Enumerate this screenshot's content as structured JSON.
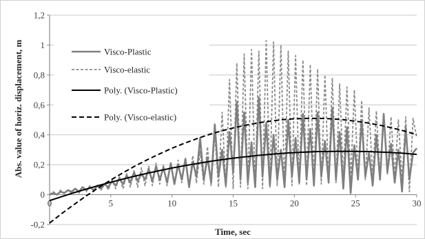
{
  "chart_data": {
    "type": "line",
    "xlabel": "Time, sec",
    "ylabel": "Abs. value of horiz. displacement, m",
    "xlim": [
      0,
      30
    ],
    "ylim": [
      -0.2,
      1.2
    ],
    "x_ticks": [
      0,
      5,
      10,
      15,
      20,
      25,
      30
    ],
    "x_tick_labels": [
      "0",
      "5",
      "10",
      "15",
      "20",
      "25",
      "30"
    ],
    "y_ticks": [
      -0.2,
      0,
      0.2,
      0.4,
      0.6,
      0.8,
      1,
      1.2
    ],
    "y_tick_labels": [
      "-0,2",
      "0",
      "0,2",
      "0,4",
      "0,6",
      "0,8",
      "1",
      "1,2"
    ],
    "grid": true,
    "legend_position": "top-left",
    "series": [
      {
        "name": "Visco-Plastic",
        "color": "#7f7f7f",
        "line_style": "solid",
        "x": [
          0,
          0.3,
          0.6,
          0.9,
          1.2,
          1.5,
          1.8,
          2.1,
          2.4,
          2.7,
          3,
          3.3,
          3.6,
          3.9,
          4.2,
          4.5,
          4.8,
          5.1,
          5.4,
          5.7,
          6,
          6.3,
          6.6,
          6.9,
          7.2,
          7.5,
          7.8,
          8.1,
          8.4,
          8.7,
          9,
          9.3,
          9.6,
          9.9,
          10.2,
          10.5,
          10.8,
          11.1,
          11.4,
          11.7,
          12,
          12.3,
          12.6,
          12.9,
          13.2,
          13.5,
          13.8,
          14.1,
          14.4,
          14.7,
          15,
          15.3,
          15.6,
          15.9,
          16.2,
          16.5,
          16.8,
          17.1,
          17.4,
          17.7,
          18,
          18.3,
          18.6,
          18.9,
          19.2,
          19.5,
          19.8,
          20.1,
          20.4,
          20.7,
          21,
          21.3,
          21.6,
          21.9,
          22.2,
          22.5,
          22.8,
          23.1,
          23.4,
          23.7,
          24,
          24.3,
          24.6,
          24.9,
          25.2,
          25.5,
          25.8,
          26.1,
          26.4,
          26.7,
          27,
          27.3,
          27.6,
          27.9,
          28.2,
          28.5,
          28.8,
          29.1,
          29.4,
          29.7,
          30
        ],
        "y": [
          0.0,
          0.01,
          0.0,
          0.02,
          0.01,
          0.03,
          0.02,
          0.04,
          0.02,
          0.05,
          0.03,
          0.05,
          0.03,
          0.06,
          0.04,
          0.07,
          0.05,
          0.09,
          0.06,
          0.11,
          0.07,
          0.13,
          0.08,
          0.15,
          0.09,
          0.14,
          0.1,
          0.17,
          0.09,
          0.19,
          0.1,
          0.18,
          0.08,
          0.21,
          0.07,
          0.2,
          0.1,
          0.24,
          0.05,
          0.22,
          0.12,
          0.38,
          0.1,
          0.25,
          0.08,
          0.47,
          0.12,
          0.3,
          0.06,
          0.42,
          0.15,
          0.62,
          0.1,
          0.55,
          0.08,
          0.35,
          0.05,
          0.65,
          0.12,
          0.48,
          0.06,
          0.4,
          0.1,
          0.3,
          0.05,
          0.5,
          0.12,
          0.38,
          0.08,
          0.54,
          0.1,
          0.44,
          0.06,
          0.55,
          0.12,
          0.36,
          0.08,
          0.58,
          0.1,
          0.42,
          0.04,
          0.45,
          0.01,
          0.33,
          0.1,
          0.5,
          0.12,
          0.28,
          0.06,
          0.4,
          0.1,
          0.54,
          0.15,
          0.34,
          0.08,
          0.3,
          0.02,
          0.45,
          0.1,
          0.28,
          0.31
        ]
      },
      {
        "name": "Visco-elastic",
        "color": "#8c8c8c",
        "line_style": "dashed",
        "x": [
          0,
          0.3,
          0.6,
          0.9,
          1.2,
          1.5,
          1.8,
          2.1,
          2.4,
          2.7,
          3,
          3.3,
          3.6,
          3.9,
          4.2,
          4.5,
          4.8,
          5.1,
          5.4,
          5.7,
          6,
          6.3,
          6.6,
          6.9,
          7.2,
          7.5,
          7.8,
          8.1,
          8.4,
          8.7,
          9,
          9.3,
          9.6,
          9.9,
          10.2,
          10.5,
          10.8,
          11.1,
          11.4,
          11.7,
          12,
          12.3,
          12.6,
          12.9,
          13.2,
          13.5,
          13.8,
          14.1,
          14.4,
          14.7,
          15,
          15.3,
          15.6,
          15.9,
          16.2,
          16.5,
          16.8,
          17.1,
          17.4,
          17.7,
          18,
          18.3,
          18.6,
          18.9,
          19.2,
          19.5,
          19.8,
          20.1,
          20.4,
          20.7,
          21,
          21.3,
          21.6,
          21.9,
          22.2,
          22.5,
          22.8,
          23.1,
          23.4,
          23.7,
          24,
          24.3,
          24.6,
          24.9,
          25.2,
          25.5,
          25.8,
          26.1,
          26.4,
          26.7,
          27,
          27.3,
          27.6,
          27.9,
          28.2,
          28.5,
          28.8,
          29.1,
          29.4,
          29.7,
          30
        ],
        "y": [
          0.0,
          0.02,
          0.0,
          0.03,
          0.01,
          0.03,
          0.01,
          0.04,
          0.01,
          0.05,
          0.02,
          0.06,
          0.02,
          0.06,
          0.03,
          0.08,
          0.03,
          0.1,
          0.04,
          0.12,
          0.04,
          0.14,
          0.05,
          0.16,
          0.05,
          0.18,
          0.06,
          0.19,
          0.06,
          0.21,
          0.07,
          0.2,
          0.06,
          0.22,
          0.07,
          0.23,
          0.08,
          0.24,
          0.07,
          0.26,
          0.08,
          0.29,
          0.07,
          0.32,
          0.06,
          0.4,
          0.05,
          0.55,
          0.05,
          0.77,
          0.04,
          0.88,
          0.05,
          0.94,
          0.04,
          0.97,
          0.05,
          0.96,
          0.04,
          1.03,
          0.05,
          1.02,
          0.06,
          1.0,
          0.05,
          0.96,
          0.06,
          0.93,
          0.07,
          0.9,
          0.06,
          0.87,
          0.08,
          0.84,
          0.07,
          0.8,
          0.09,
          0.78,
          0.08,
          0.74,
          0.1,
          0.72,
          0.09,
          0.7,
          0.11,
          0.63,
          0.1,
          0.58,
          0.12,
          0.56,
          0.11,
          0.54,
          0.13,
          0.52,
          0.12,
          0.5,
          0.1,
          0.52,
          0.02,
          0.51,
          0.38
        ]
      },
      {
        "name": "Poly. (Visco-Plastic)",
        "color": "#000000",
        "line_style": "solid",
        "x": [
          0,
          1,
          2,
          3,
          4,
          5,
          6,
          7,
          8,
          9,
          10,
          11,
          12,
          13,
          14,
          15,
          16,
          17,
          18,
          19,
          20,
          21,
          22,
          23,
          24,
          25,
          26,
          27,
          28,
          29,
          30
        ],
        "y": [
          -0.04,
          -0.013,
          0.013,
          0.037,
          0.061,
          0.083,
          0.104,
          0.124,
          0.143,
          0.161,
          0.178,
          0.193,
          0.207,
          0.221,
          0.233,
          0.244,
          0.253,
          0.262,
          0.269,
          0.276,
          0.281,
          0.285,
          0.288,
          0.289,
          0.29,
          0.289,
          0.288,
          0.285,
          0.281,
          0.276,
          0.269
        ]
      },
      {
        "name": "Poly. (Visco-elastic)",
        "color": "#000000",
        "line_style": "dashed",
        "x": [
          0,
          1,
          2,
          3,
          4,
          5,
          6,
          7,
          8,
          9,
          10,
          11,
          12,
          13,
          14,
          15,
          16,
          17,
          18,
          19,
          20,
          21,
          22,
          23,
          24,
          25,
          26,
          27,
          28,
          29,
          30
        ],
        "y": [
          -0.19,
          -0.126,
          -0.066,
          -0.008,
          0.046,
          0.098,
          0.146,
          0.192,
          0.234,
          0.273,
          0.31,
          0.343,
          0.373,
          0.401,
          0.425,
          0.446,
          0.464,
          0.479,
          0.491,
          0.501,
          0.507,
          0.51,
          0.51,
          0.507,
          0.501,
          0.491,
          0.479,
          0.464,
          0.446,
          0.425,
          0.401
        ]
      }
    ]
  }
}
